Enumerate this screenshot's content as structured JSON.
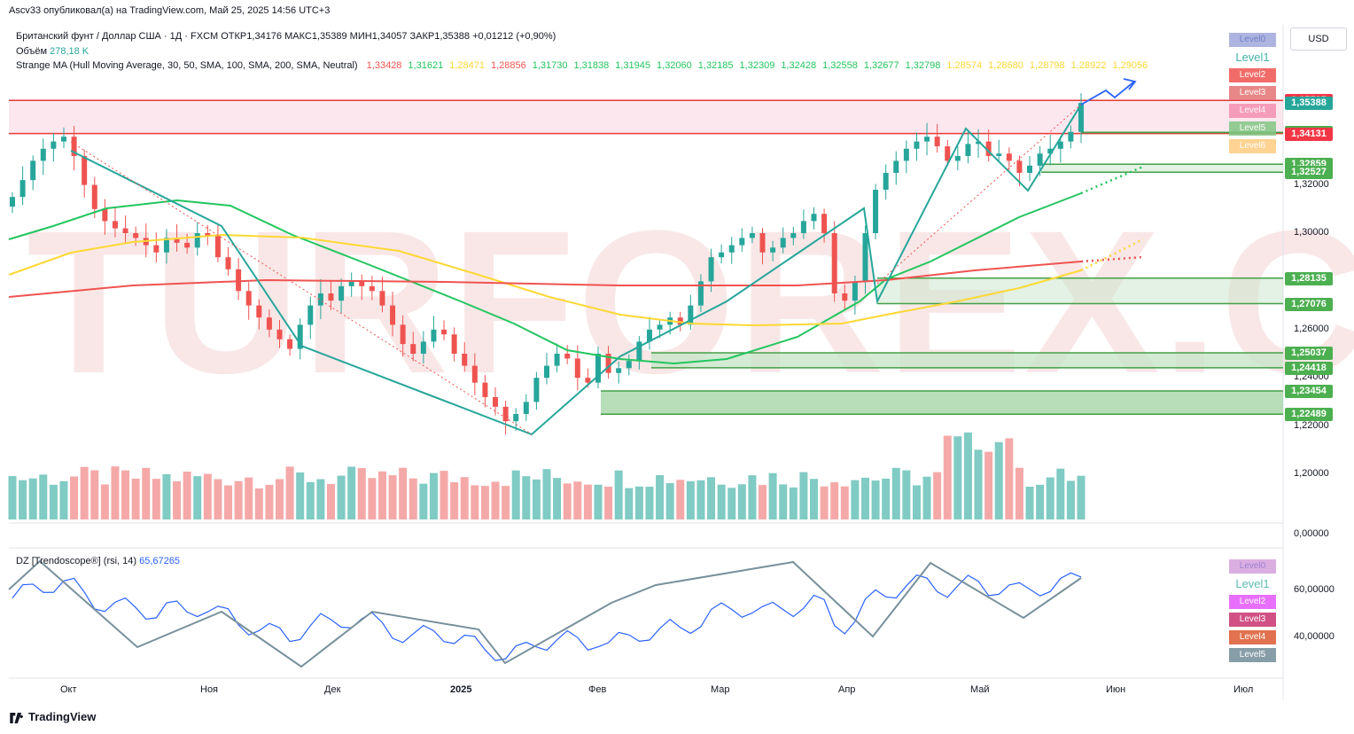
{
  "header": {
    "published_by": "Ascv33 опубликовал(а) на TradingView.com, Май 25, 2025 14:56 UTC+3",
    "symbol_line": "Британский фунт / Доллар США · 1Д · FXCM",
    "ohlc": {
      "open_label": "ОТКР",
      "open": "1,34176",
      "high_label": "МАКС",
      "high": "1,35389",
      "low_label": "МИН",
      "low": "1,34057",
      "close_label": "ЗАКР",
      "close": "1,35388",
      "change": "+0,01212 (+0,90%)"
    },
    "volume_label": "Объём",
    "volume_value": "278,18 K",
    "ma_label": "Strange MA (Hull Moving Average, 30, 50, SMA, 100, SMA, 200, SMA, Neutral)",
    "ma_values": [
      {
        "v": "1,33428",
        "c": "#ef5350"
      },
      {
        "v": "1,31621",
        "c": "#22c55e"
      },
      {
        "v": "1,28471",
        "c": "#fdd835"
      },
      {
        "v": "1,28856",
        "c": "#ef5350"
      },
      {
        "v": "1,31730",
        "c": "#22c55e"
      },
      {
        "v": "1,31838",
        "c": "#22c55e"
      },
      {
        "v": "1,31945",
        "c": "#22c55e"
      },
      {
        "v": "1,32060",
        "c": "#22c55e"
      },
      {
        "v": "1,32185",
        "c": "#22c55e"
      },
      {
        "v": "1,32309",
        "c": "#22c55e"
      },
      {
        "v": "1,32428",
        "c": "#22c55e"
      },
      {
        "v": "1,32558",
        "c": "#22c55e"
      },
      {
        "v": "1,32677",
        "c": "#22c55e"
      },
      {
        "v": "1,32798",
        "c": "#22c55e"
      },
      {
        "v": "1,28574",
        "c": "#fdd835"
      },
      {
        "v": "1,28680",
        "c": "#fdd835"
      },
      {
        "v": "1,28798",
        "c": "#fdd835"
      },
      {
        "v": "1,28922",
        "c": "#fdd835"
      },
      {
        "v": "1,29056",
        "c": "#fdd835"
      }
    ],
    "currency": "USD"
  },
  "watermark": "TURFOREX.COM",
  "price_levels": [
    {
      "label": "1,35505",
      "price": 1.35505,
      "color": "#f23645"
    },
    {
      "label": "1,35388",
      "price": 1.35388,
      "color": "#26a69a"
    },
    {
      "label": "1,34179",
      "price": 1.34179,
      "color": "#4caf50"
    },
    {
      "label": "1,34131",
      "price": 1.34131,
      "color": "#f23645"
    },
    {
      "label": "1,32859",
      "price": 1.32859,
      "color": "#4caf50"
    },
    {
      "label": "1,32527",
      "price": 1.32527,
      "color": "#4caf50"
    },
    {
      "label": "1,28135",
      "price": 1.28135,
      "color": "#4caf50"
    },
    {
      "label": "1,27076",
      "price": 1.27076,
      "color": "#4caf50"
    },
    {
      "label": "1,25037",
      "price": 1.25037,
      "color": "#4caf50"
    },
    {
      "label": "1,24418",
      "price": 1.24418,
      "color": "#4caf50"
    },
    {
      "label": "1,23454",
      "price": 1.23454,
      "color": "#4caf50"
    },
    {
      "label": "1,22489",
      "price": 1.22489,
      "color": "#4caf50"
    }
  ],
  "price_axis_ticks": [
    {
      "label": "1,32000",
      "price": 1.32
    },
    {
      "label": "1,30000",
      "price": 1.3
    },
    {
      "label": "1,26000",
      "price": 1.26
    },
    {
      "label": "1,24000",
      "price": 1.24
    },
    {
      "label": "1,22000",
      "price": 1.22
    },
    {
      "label": "1,20000",
      "price": 1.2
    },
    {
      "label": "0,00000",
      "price": null
    }
  ],
  "level_buttons_top": [
    {
      "label": "Level0",
      "color": "#9fa8da",
      "text": "#5c6bc0"
    },
    {
      "label": "Level1",
      "color": "#ffffff",
      "text": "#26a69a"
    },
    {
      "label": "Level2",
      "color": "#ef5350",
      "text": "#ffffff"
    },
    {
      "label": "Level3",
      "color": "#e57373",
      "text": "#ffffff"
    },
    {
      "label": "Level4",
      "color": "#f48fb1",
      "text": "#ffffff"
    },
    {
      "label": "Level5",
      "color": "#81c784",
      "text": "#ffffff"
    },
    {
      "label": "Level6",
      "color": "#ffcc80",
      "text": "#ffffff"
    }
  ],
  "level_buttons_rsi": [
    {
      "label": "Level0",
      "color": "#ce93d8",
      "text": "#7e57c2"
    },
    {
      "label": "Level1",
      "color": "#ffffff",
      "text": "#26a69a"
    },
    {
      "label": "Level2",
      "color": "#e040fb",
      "text": "#ffffff"
    },
    {
      "label": "Level3",
      "color": "#c2185b",
      "text": "#ffffff"
    },
    {
      "label": "Level4",
      "color": "#d84315",
      "text": "#ffffff"
    },
    {
      "label": "Level5",
      "color": "#607d8b",
      "text": "#ffffff"
    }
  ],
  "rsi": {
    "label": "DZ [Trendoscope®] (rsi, 14)",
    "value": "65,67265",
    "axis_ticks": [
      {
        "label": "60,00000",
        "v": 60
      },
      {
        "label": "40,00000",
        "v": 40
      }
    ]
  },
  "chart_data": {
    "type": "candlestick",
    "x_ticks": [
      "Окт",
      "Ноя",
      "Дек",
      "2025",
      "Фев",
      "Мар",
      "Апр",
      "Май",
      "Июн",
      "Июл"
    ],
    "close_series_approx": [
      1.315,
      1.322,
      1.33,
      1.335,
      1.338,
      1.34,
      1.332,
      1.32,
      1.31,
      1.305,
      1.302,
      1.3,
      1.298,
      1.295,
      1.292,
      1.298,
      1.296,
      1.294,
      1.3,
      1.299,
      1.29,
      1.285,
      1.276,
      1.27,
      1.265,
      1.26,
      1.256,
      1.252,
      1.262,
      1.27,
      1.275,
      1.272,
      1.278,
      1.28,
      1.278,
      1.276,
      1.27,
      1.262,
      1.254,
      1.25,
      1.255,
      1.26,
      1.258,
      1.25,
      1.245,
      1.238,
      1.232,
      1.228,
      1.222,
      1.225,
      1.23,
      1.24,
      1.245,
      1.25,
      1.248,
      1.24,
      1.238,
      1.25,
      1.242,
      1.244,
      1.247,
      1.255,
      1.26,
      1.262,
      1.265,
      1.262,
      1.27,
      1.28,
      1.29,
      1.292,
      1.295,
      1.298,
      1.3,
      1.292,
      1.294,
      1.298,
      1.3,
      1.305,
      1.308,
      1.3,
      1.275,
      1.272,
      1.28,
      1.3,
      1.318,
      1.325,
      1.33,
      1.335,
      1.338,
      1.34,
      1.336,
      1.33,
      1.332,
      1.337,
      1.338,
      1.332,
      1.333,
      1.33,
      1.325,
      1.328,
      1.333,
      1.335,
      1.338,
      1.342,
      1.354
    ],
    "volume_label": "Объём",
    "rsi_latest": 65.67265
  }
}
